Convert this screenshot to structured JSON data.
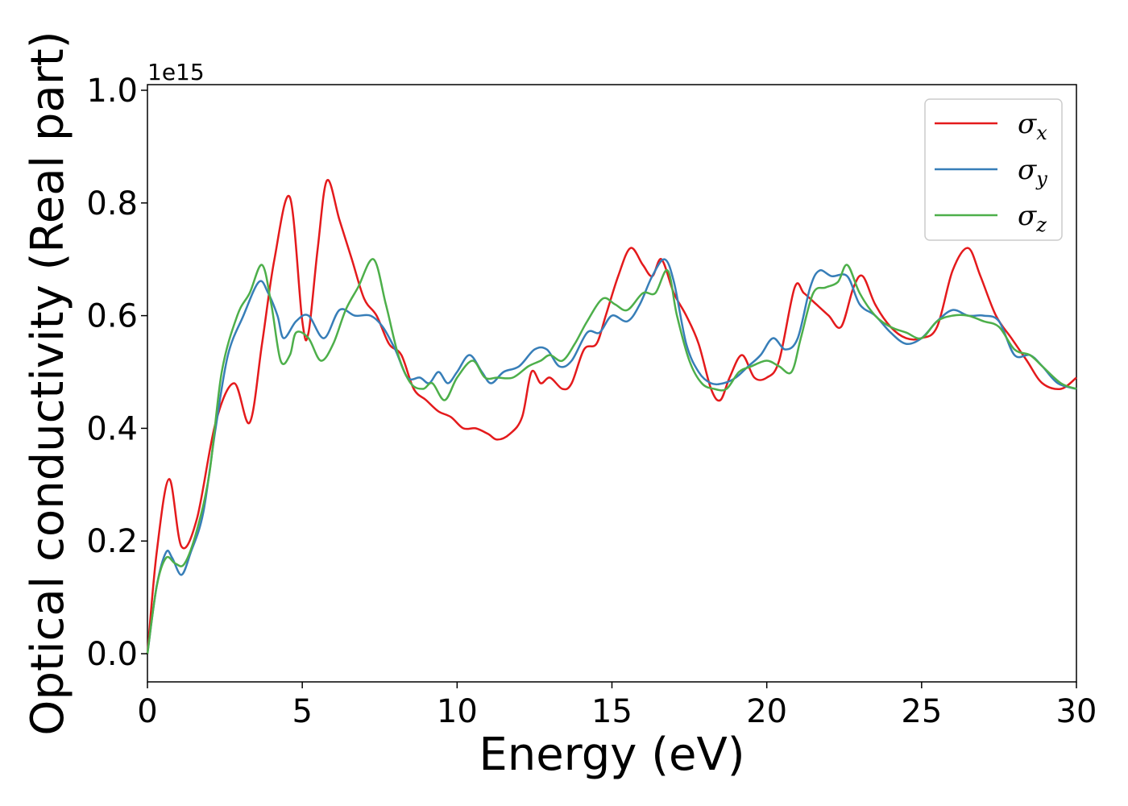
{
  "chart_data": {
    "type": "line",
    "xlabel": "Energy (eV)",
    "ylabel": "Optical conductivity (Real part)",
    "y_offset_label": "1e15",
    "xlim": [
      0,
      30
    ],
    "ylim": [
      -0.05,
      1.01
    ],
    "x_ticks": [
      0,
      5,
      10,
      15,
      20,
      25,
      30
    ],
    "x_tick_labels": [
      "0",
      "5",
      "10",
      "15",
      "20",
      "25",
      "30"
    ],
    "y_ticks": [
      0.0,
      0.2,
      0.4,
      0.6,
      0.8,
      1.0
    ],
    "y_tick_labels": [
      "0.0",
      "0.2",
      "0.4",
      "0.6",
      "0.8",
      "1.0"
    ],
    "grid": false,
    "legend_position": "top-right",
    "series": [
      {
        "name": "σx",
        "legend_base": "σ",
        "legend_sub": "x",
        "color": "#e41a1c",
        "points": [
          [
            0,
            0
          ],
          [
            0.3,
            0.18
          ],
          [
            0.7,
            0.31
          ],
          [
            1.1,
            0.19
          ],
          [
            1.6,
            0.24
          ],
          [
            2.2,
            0.41
          ],
          [
            2.8,
            0.48
          ],
          [
            3.3,
            0.41
          ],
          [
            3.7,
            0.55
          ],
          [
            4.1,
            0.7
          ],
          [
            4.6,
            0.81
          ],
          [
            5.0,
            0.59
          ],
          [
            5.2,
            0.57
          ],
          [
            5.5,
            0.72
          ],
          [
            5.8,
            0.84
          ],
          [
            6.2,
            0.77
          ],
          [
            6.6,
            0.7
          ],
          [
            7.0,
            0.63
          ],
          [
            7.4,
            0.6
          ],
          [
            7.8,
            0.55
          ],
          [
            8.2,
            0.53
          ],
          [
            8.6,
            0.47
          ],
          [
            9.0,
            0.45
          ],
          [
            9.4,
            0.43
          ],
          [
            9.8,
            0.42
          ],
          [
            10.2,
            0.4
          ],
          [
            10.6,
            0.4
          ],
          [
            11.0,
            0.39
          ],
          [
            11.3,
            0.38
          ],
          [
            11.7,
            0.39
          ],
          [
            12.1,
            0.42
          ],
          [
            12.4,
            0.5
          ],
          [
            12.7,
            0.48
          ],
          [
            13.0,
            0.49
          ],
          [
            13.4,
            0.47
          ],
          [
            13.7,
            0.48
          ],
          [
            14.1,
            0.54
          ],
          [
            14.5,
            0.55
          ],
          [
            14.8,
            0.6
          ],
          [
            15.2,
            0.67
          ],
          [
            15.6,
            0.72
          ],
          [
            16.0,
            0.69
          ],
          [
            16.3,
            0.67
          ],
          [
            16.6,
            0.7
          ],
          [
            17.0,
            0.64
          ],
          [
            17.4,
            0.6
          ],
          [
            17.8,
            0.55
          ],
          [
            18.2,
            0.47
          ],
          [
            18.5,
            0.45
          ],
          [
            18.8,
            0.49
          ],
          [
            19.2,
            0.53
          ],
          [
            19.6,
            0.49
          ],
          [
            20.0,
            0.49
          ],
          [
            20.4,
            0.52
          ],
          [
            20.9,
            0.65
          ],
          [
            21.2,
            0.64
          ],
          [
            21.6,
            0.62
          ],
          [
            22.0,
            0.6
          ],
          [
            22.4,
            0.58
          ],
          [
            22.8,
            0.65
          ],
          [
            23.1,
            0.67
          ],
          [
            23.5,
            0.62
          ],
          [
            24.0,
            0.58
          ],
          [
            24.5,
            0.56
          ],
          [
            25.0,
            0.56
          ],
          [
            25.5,
            0.58
          ],
          [
            26.0,
            0.68
          ],
          [
            26.5,
            0.72
          ],
          [
            26.9,
            0.67
          ],
          [
            27.4,
            0.6
          ],
          [
            27.9,
            0.56
          ],
          [
            28.4,
            0.52
          ],
          [
            28.9,
            0.48
          ],
          [
            29.5,
            0.47
          ],
          [
            30.0,
            0.49
          ]
        ]
      },
      {
        "name": "σy",
        "legend_base": "σ",
        "legend_sub": "y",
        "color": "#377eb8",
        "points": [
          [
            0,
            0
          ],
          [
            0.3,
            0.12
          ],
          [
            0.6,
            0.18
          ],
          [
            0.8,
            0.17
          ],
          [
            1.1,
            0.14
          ],
          [
            1.4,
            0.18
          ],
          [
            1.8,
            0.25
          ],
          [
            2.2,
            0.4
          ],
          [
            2.6,
            0.53
          ],
          [
            3.1,
            0.6
          ],
          [
            3.6,
            0.66
          ],
          [
            3.9,
            0.64
          ],
          [
            4.2,
            0.6
          ],
          [
            4.4,
            0.56
          ],
          [
            4.8,
            0.59
          ],
          [
            5.2,
            0.6
          ],
          [
            5.7,
            0.56
          ],
          [
            6.2,
            0.61
          ],
          [
            6.7,
            0.6
          ],
          [
            7.2,
            0.6
          ],
          [
            7.6,
            0.58
          ],
          [
            8.0,
            0.54
          ],
          [
            8.4,
            0.49
          ],
          [
            8.8,
            0.49
          ],
          [
            9.1,
            0.48
          ],
          [
            9.4,
            0.5
          ],
          [
            9.7,
            0.48
          ],
          [
            10.0,
            0.5
          ],
          [
            10.4,
            0.53
          ],
          [
            10.8,
            0.5
          ],
          [
            11.1,
            0.48
          ],
          [
            11.5,
            0.5
          ],
          [
            12.0,
            0.51
          ],
          [
            12.5,
            0.54
          ],
          [
            12.9,
            0.54
          ],
          [
            13.3,
            0.51
          ],
          [
            13.7,
            0.52
          ],
          [
            14.2,
            0.57
          ],
          [
            14.6,
            0.57
          ],
          [
            15.0,
            0.6
          ],
          [
            15.5,
            0.59
          ],
          [
            15.9,
            0.62
          ],
          [
            16.3,
            0.67
          ],
          [
            16.7,
            0.7
          ],
          [
            17.0,
            0.66
          ],
          [
            17.4,
            0.55
          ],
          [
            17.8,
            0.5
          ],
          [
            18.2,
            0.48
          ],
          [
            18.6,
            0.48
          ],
          [
            19.0,
            0.49
          ],
          [
            19.4,
            0.51
          ],
          [
            19.8,
            0.53
          ],
          [
            20.2,
            0.56
          ],
          [
            20.6,
            0.54
          ],
          [
            21.0,
            0.56
          ],
          [
            21.4,
            0.65
          ],
          [
            21.7,
            0.68
          ],
          [
            22.1,
            0.67
          ],
          [
            22.6,
            0.67
          ],
          [
            23.0,
            0.62
          ],
          [
            23.5,
            0.6
          ],
          [
            24.0,
            0.57
          ],
          [
            24.5,
            0.55
          ],
          [
            25.0,
            0.56
          ],
          [
            25.5,
            0.59
          ],
          [
            26.0,
            0.61
          ],
          [
            26.5,
            0.6
          ],
          [
            27.0,
            0.6
          ],
          [
            27.5,
            0.59
          ],
          [
            28.0,
            0.53
          ],
          [
            28.5,
            0.53
          ],
          [
            28.9,
            0.51
          ],
          [
            29.4,
            0.48
          ],
          [
            30.0,
            0.47
          ]
        ]
      },
      {
        "name": "σz",
        "legend_base": "σ",
        "legend_sub": "z",
        "color": "#4daf4a",
        "points": [
          [
            0,
            0
          ],
          [
            0.3,
            0.12
          ],
          [
            0.6,
            0.17
          ],
          [
            0.9,
            0.16
          ],
          [
            1.2,
            0.16
          ],
          [
            1.6,
            0.22
          ],
          [
            2.0,
            0.32
          ],
          [
            2.4,
            0.5
          ],
          [
            2.9,
            0.6
          ],
          [
            3.3,
            0.64
          ],
          [
            3.7,
            0.69
          ],
          [
            4.0,
            0.62
          ],
          [
            4.3,
            0.52
          ],
          [
            4.6,
            0.53
          ],
          [
            4.8,
            0.57
          ],
          [
            5.2,
            0.56
          ],
          [
            5.6,
            0.52
          ],
          [
            6.0,
            0.55
          ],
          [
            6.4,
            0.61
          ],
          [
            6.8,
            0.65
          ],
          [
            7.3,
            0.7
          ],
          [
            7.7,
            0.62
          ],
          [
            8.1,
            0.53
          ],
          [
            8.5,
            0.48
          ],
          [
            8.9,
            0.47
          ],
          [
            9.2,
            0.48
          ],
          [
            9.6,
            0.45
          ],
          [
            10.0,
            0.49
          ],
          [
            10.5,
            0.52
          ],
          [
            10.9,
            0.49
          ],
          [
            11.3,
            0.49
          ],
          [
            11.8,
            0.49
          ],
          [
            12.3,
            0.51
          ],
          [
            12.7,
            0.52
          ],
          [
            13.0,
            0.53
          ],
          [
            13.4,
            0.52
          ],
          [
            13.8,
            0.55
          ],
          [
            14.2,
            0.59
          ],
          [
            14.7,
            0.63
          ],
          [
            15.1,
            0.62
          ],
          [
            15.5,
            0.61
          ],
          [
            16.0,
            0.64
          ],
          [
            16.4,
            0.64
          ],
          [
            16.8,
            0.68
          ],
          [
            17.1,
            0.6
          ],
          [
            17.5,
            0.52
          ],
          [
            17.9,
            0.48
          ],
          [
            18.3,
            0.47
          ],
          [
            18.7,
            0.47
          ],
          [
            19.1,
            0.5
          ],
          [
            19.5,
            0.51
          ],
          [
            20.0,
            0.52
          ],
          [
            20.4,
            0.51
          ],
          [
            20.8,
            0.5
          ],
          [
            21.1,
            0.56
          ],
          [
            21.5,
            0.64
          ],
          [
            21.9,
            0.65
          ],
          [
            22.3,
            0.66
          ],
          [
            22.6,
            0.69
          ],
          [
            23.0,
            0.64
          ],
          [
            23.5,
            0.6
          ],
          [
            24.0,
            0.58
          ],
          [
            24.5,
            0.57
          ],
          [
            25.0,
            0.56
          ],
          [
            25.5,
            0.59
          ],
          [
            26.0,
            0.6
          ],
          [
            26.5,
            0.6
          ],
          [
            27.0,
            0.59
          ],
          [
            27.5,
            0.58
          ],
          [
            28.0,
            0.54
          ],
          [
            28.5,
            0.53
          ],
          [
            28.9,
            0.51
          ],
          [
            29.5,
            0.48
          ],
          [
            30.0,
            0.47
          ]
        ]
      }
    ]
  }
}
